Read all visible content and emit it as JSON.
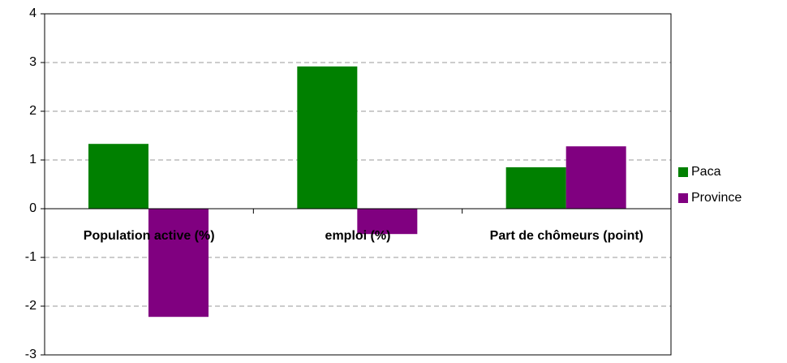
{
  "chart_data": {
    "type": "bar",
    "categories": [
      "Population active (%)",
      "emploi (%)",
      "Part de chômeurs (point)"
    ],
    "series": [
      {
        "name": "Paca",
        "color": "#008000",
        "values": [
          1.33,
          2.92,
          0.85
        ]
      },
      {
        "name": "Province",
        "color": "#800080",
        "values": [
          -2.22,
          -0.52,
          1.28
        ]
      }
    ],
    "ylim": [
      -3,
      4
    ],
    "yticks": [
      -3,
      -2,
      -1,
      0,
      1,
      2,
      3,
      4
    ],
    "grid": true,
    "legend": "right"
  }
}
